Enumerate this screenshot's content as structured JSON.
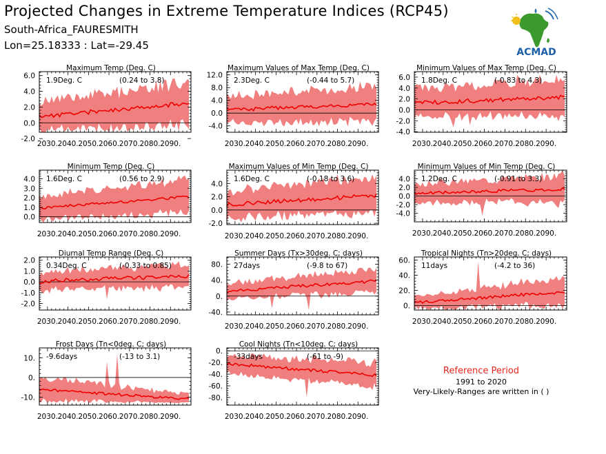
{
  "header": {
    "title": "Projected Changes in Extreme Temperature Indices (RCP45)",
    "location": "South-Africa_FAURESMITH",
    "coordinates": "Lon=25.18333 : Lat=-29.45"
  },
  "logo": {
    "text": "ACMAD",
    "icon": "africa-map-logo"
  },
  "reference": {
    "title": "Reference Period",
    "years": "1991 to 2020",
    "note": "Very-Likely-Ranges are written in ( )"
  },
  "colors": {
    "band": "#f08080",
    "line": "#ee0000",
    "ref_text": "#e8251e"
  },
  "chart_data": [
    {
      "type": "area",
      "title": "Maximum Temp (Deg. C)",
      "change": "1.9Deg. C",
      "range": "(0.24 to 3.8)",
      "x": [
        2030,
        2040,
        2050,
        2060,
        2070,
        2080,
        2090
      ],
      "ylim": [
        -1.2,
        6.5
      ],
      "yticks": [
        -2.0,
        0.0,
        2.0,
        4.0,
        6.0
      ],
      "yticklabels": [
        "-2.0",
        "0.0",
        "2.0",
        "4.0",
        "6.0"
      ],
      "ytick_minor": 0.4,
      "trend": [
        0.8,
        2.5
      ],
      "band_width": [
        1.6,
        2.4
      ],
      "noise": 0.55,
      "spikes": [
        [
          2060,
          -2.3
        ]
      ],
      "seed": 11
    },
    {
      "type": "area",
      "title": "Maximum Values of Max Temp (Deg. C)",
      "change": "2.3Deg. C",
      "range": "(-0.44 to 5.7)",
      "x": [
        2030,
        2040,
        2050,
        2060,
        2070,
        2080,
        2090
      ],
      "ylim": [
        -6,
        13
      ],
      "yticks": [
        -4.0,
        0.0,
        4.0,
        8.0,
        12.0
      ],
      "yticklabels": [
        "-4.0",
        "0.0",
        "4.0",
        "8.0",
        "12.0"
      ],
      "ytick_minor": 0.8,
      "trend": [
        1.0,
        2.9
      ],
      "band_width": [
        3.6,
        5.0
      ],
      "noise": 1.2,
      "spikes": [
        [
          2054,
          -4.2
        ],
        [
          2063,
          -3.8
        ]
      ],
      "seed": 23
    },
    {
      "type": "area",
      "title": "Minimum Values of Max Temp (Deg. C)",
      "change": "1.8Deg. C",
      "range": "(-0.83 to 4.3)",
      "x": [
        2030,
        2040,
        2050,
        2060,
        2070,
        2080,
        2090
      ],
      "ylim": [
        -4.1,
        7.0
      ],
      "yticks": [
        -4.0,
        -2.0,
        0.0,
        2.0,
        4.0,
        6.0
      ],
      "yticklabels": [
        "-4.0",
        "-2.0",
        "0.0",
        "2.0",
        "4.0",
        "6.0"
      ],
      "ytick_minor": 0.4,
      "trend": [
        1.2,
        2.4
      ],
      "band_width": [
        2.2,
        3.0
      ],
      "noise": 0.8,
      "spikes": [
        [
          2045,
          -3.2
        ],
        [
          2053,
          -2.8
        ]
      ],
      "seed": 37
    },
    {
      "type": "area",
      "title": "Minimum Temp (Deg. C)",
      "change": "1.6Deg. C",
      "range": "(0.56 to 2.9)",
      "x": [
        2030,
        2040,
        2050,
        2060,
        2070,
        2080,
        2090
      ],
      "ylim": [
        -0.6,
        4.9
      ],
      "yticks": [
        0.0,
        1.0,
        2.0,
        3.0,
        4.0
      ],
      "yticklabels": [
        "0.0",
        "1.0",
        "2.0",
        "3.0",
        "4.0"
      ],
      "ytick_minor": 0.2,
      "trend": [
        0.9,
        2.1
      ],
      "band_width": [
        1.1,
        1.5
      ],
      "noise": 0.3,
      "spikes": [
        [
          2062,
          -0.1
        ]
      ],
      "seed": 41
    },
    {
      "type": "area",
      "title": "Maximum Values of Min Temp (Deg. C)",
      "change": "1.6Deg. C",
      "range": "(-0.18 to 3.6)",
      "x": [
        2030,
        2040,
        2050,
        2060,
        2070,
        2080,
        2090
      ],
      "ylim": [
        -2.2,
        6.0
      ],
      "yticks": [
        -2.0,
        0.0,
        2.0,
        4.0
      ],
      "yticklabels": [
        "-2.0",
        "0.0",
        "2.0",
        "4.0"
      ],
      "ytick_minor": 0.4,
      "trend": [
        0.8,
        2.2
      ],
      "band_width": [
        1.8,
        2.4
      ],
      "noise": 0.6,
      "spikes": [],
      "seed": 53
    },
    {
      "type": "area",
      "title": "Minimum Values of Min Temp (Deg. C)",
      "change": "1.2Deg. C",
      "range": "(-0.91 to 3.3)",
      "x": [
        2030,
        2040,
        2050,
        2060,
        2070,
        2080,
        2090
      ],
      "ylim": [
        -6,
        6
      ],
      "yticks": [
        -4.0,
        -2.0,
        0.0,
        2.0,
        4.0
      ],
      "yticklabels": [
        "-4.0",
        "-2.0",
        "0.0",
        "2.0",
        "4.0"
      ],
      "ytick_minor": 0.4,
      "trend": [
        0.6,
        1.6
      ],
      "band_width": [
        2.0,
        2.8
      ],
      "noise": 0.7,
      "spikes": [
        [
          2059,
          -4.6
        ],
        [
          2096,
          -2.8
        ]
      ],
      "seed": 67
    },
    {
      "type": "area",
      "title": "Diurnal Temp Range (Deg. C)",
      "change": "0.34Deg. C",
      "range": "(-0.33 to 0.85)",
      "x": [
        2030,
        2040,
        2050,
        2060,
        2070,
        2080,
        2090
      ],
      "ylim": [
        -2.6,
        2.3
      ],
      "yticks": [
        -2.0,
        -1.0,
        0.0,
        1.0,
        2.0
      ],
      "yticklabels": [
        "-2.0",
        "-1.0",
        "0.0",
        "1.0",
        "2.0"
      ],
      "ytick_minor": 0.2,
      "trend": [
        0.05,
        0.55
      ],
      "band_width": [
        0.7,
        1.0
      ],
      "noise": 0.35,
      "spikes": [
        [
          2059,
          -1.6
        ],
        [
          2097,
          -0.4
        ]
      ],
      "seed": 71
    },
    {
      "type": "area",
      "title": "Summer Days (Tx>30deg. C; days)",
      "change": "27days",
      "range": "(-9.8 to 67)",
      "x": [
        2030,
        2040,
        2050,
        2060,
        2070,
        2080,
        2090
      ],
      "ylim": [
        -47,
        98
      ],
      "yticks": [
        -40.0,
        0.0,
        40.0,
        80.0
      ],
      "yticklabels": [
        "-40.",
        "0.",
        "40.",
        "80."
      ],
      "ytick_minor": 8,
      "trend": [
        12,
        38
      ],
      "band_width": [
        18,
        25
      ],
      "noise": 8,
      "spikes": [
        [
          2048,
          -30
        ],
        [
          2066,
          -35
        ]
      ],
      "seed": 83
    },
    {
      "type": "area",
      "title": "Tropical Nights (Tn>20deg. C; days)",
      "change": "11days",
      "range": "(-4.2 to 36)",
      "x": [
        2030,
        2040,
        2050,
        2060,
        2070,
        2080,
        2090
      ],
      "ylim": [
        -6,
        64
      ],
      "yticks": [
        0.0,
        20.0,
        40.0,
        60.0
      ],
      "yticklabels": [
        "0.",
        "20.",
        "40.",
        "60."
      ],
      "ytick_minor": 4,
      "trend": [
        4,
        18
      ],
      "band_width": [
        7,
        16
      ],
      "noise": 4,
      "spikes": [
        [
          2057,
          58
        ]
      ],
      "seed": 97
    },
    {
      "type": "area",
      "title": "Frost Days (Tn<0deg. C; days)",
      "change": "-9.6days",
      "range": "(-13 to 3.1)",
      "x": [
        2030,
        2040,
        2050,
        2060,
        2070,
        2080,
        2090
      ],
      "ylim": [
        -14,
        15
      ],
      "yticks": [
        -10.0,
        0.0,
        10.0
      ],
      "yticklabels": [
        "-10.",
        "0.",
        "10."
      ],
      "ytick_minor": 2,
      "trend": [
        -6,
        -11
      ],
      "band_width": [
        5.5,
        2.2
      ],
      "noise": 1.3,
      "clip": [
        -12.5,
        0.2
      ],
      "spikes": [
        [
          2059,
          8
        ],
        [
          2064,
          12
        ]
      ],
      "seed": 101
    },
    {
      "type": "area",
      "title": "Cool Nights (Tn<10deg. C; days)",
      "change": "-33days",
      "range": "(-61 to -9)",
      "x": [
        2030,
        2040,
        2050,
        2060,
        2070,
        2080,
        2090
      ],
      "ylim": [
        -93,
        5
      ],
      "yticks": [
        -80.0,
        -60.0,
        -40.0,
        -20.0,
        0.0
      ],
      "yticklabels": [
        "-80.",
        "-60.",
        "-40.",
        "-20.",
        "0."
      ],
      "ytick_minor": 4,
      "trend": [
        -22,
        -42
      ],
      "band_width": [
        14,
        18
      ],
      "noise": 5,
      "spikes": [
        [
          2065,
          -80
        ]
      ],
      "seed": 113
    }
  ]
}
